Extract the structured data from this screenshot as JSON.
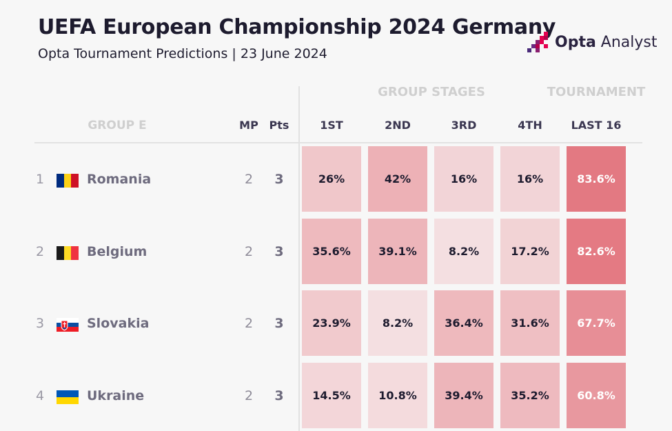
{
  "title": "UEFA European Championship 2024 Germany",
  "subtitle": "Opta Tournament Predictions | 23 June 2024",
  "logo": {
    "bold": "Opta",
    "rest": " Analyst"
  },
  "chart_data": {
    "type": "table",
    "group_label": "GROUP E",
    "sections": [
      "GROUP STAGES",
      "TOURNAMENT"
    ],
    "columns": [
      "MP",
      "Pts",
      "1ST",
      "2ND",
      "3RD",
      "4TH",
      "LAST 16"
    ],
    "rows": [
      {
        "rank": "1",
        "team": "Romania",
        "mp": "2",
        "pts": "3",
        "flag": "romania",
        "values": [
          "26%",
          "42%",
          "16%",
          "16%",
          "83.6%"
        ]
      },
      {
        "rank": "2",
        "team": "Belgium",
        "mp": "2",
        "pts": "3",
        "flag": "belgium",
        "values": [
          "35.6%",
          "39.1%",
          "8.2%",
          "17.2%",
          "82.6%"
        ]
      },
      {
        "rank": "3",
        "team": "Slovakia",
        "mp": "2",
        "pts": "3",
        "flag": "slovakia",
        "values": [
          "23.9%",
          "8.2%",
          "36.4%",
          "31.6%",
          "67.7%"
        ]
      },
      {
        "rank": "4",
        "team": "Ukraine",
        "mp": "2",
        "pts": "3",
        "flag": "ukraine",
        "values": [
          "14.5%",
          "10.8%",
          "39.4%",
          "35.2%",
          "60.8%"
        ]
      }
    ]
  }
}
